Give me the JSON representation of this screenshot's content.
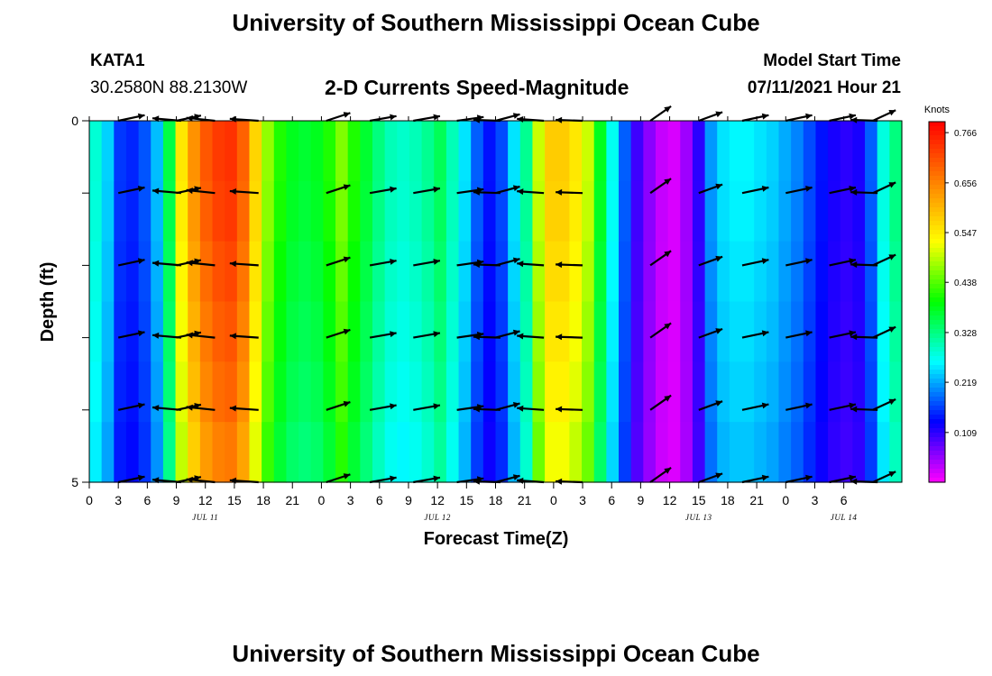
{
  "header": {
    "title": "University of Southern Mississippi Ocean Cube",
    "station": "KATA1",
    "coords": "30.2580N  88.2130W",
    "plot_title": "2-D Currents Speed-Magnitude",
    "start_label": "Model Start Time",
    "start_value": "07/11/2021 Hour 21"
  },
  "footer": {
    "title": "University of Southern Mississippi Ocean Cube"
  },
  "chart_data": {
    "type": "heatmap",
    "title": "2-D Currents Speed-Magnitude",
    "xlabel": "Forecast Time(Z)",
    "ylabel": "Depth (ft)",
    "x_hours_from_jul11_00": [
      -3,
      81
    ],
    "ylim": [
      0,
      5
    ],
    "y_ticks": [
      "0",
      "5"
    ],
    "x_tick_labels": [
      "0",
      "3",
      "6",
      "9",
      "12",
      "15",
      "18",
      "21",
      "0",
      "3",
      "6",
      "9",
      "12",
      "15",
      "18",
      "21",
      "0",
      "3",
      "6",
      "9",
      "12",
      "15",
      "18",
      "21",
      "0",
      "3",
      "6"
    ],
    "date_labels": [
      {
        "label": "JUL 11",
        "hour": 9
      },
      {
        "label": "JUL 12",
        "hour": 33
      },
      {
        "label": "JUL 13",
        "hour": 60
      },
      {
        "label": "JUL 14",
        "hour": 75
      }
    ],
    "colorbar": {
      "unit": "Knots",
      "min": 0.0,
      "max": 0.79,
      "labels": [
        "0.766",
        "0.656",
        "0.547",
        "0.438",
        "0.328",
        "0.219",
        "0.109"
      ],
      "label_values": [
        0.766,
        0.656,
        0.547,
        0.438,
        0.328,
        0.219,
        0.109
      ]
    },
    "colormap": [
      "#ff00ff",
      "#0000ff",
      "#00ffff",
      "#00ff00",
      "#ffff00",
      "#ff8000",
      "#ff0000"
    ],
    "speed_knots": [
      0.285,
      0.24,
      0.16,
      0.15,
      0.175,
      0.23,
      0.36,
      0.55,
      0.64,
      0.7,
      0.73,
      0.74,
      0.69,
      0.57,
      0.47,
      0.41,
      0.38,
      0.37,
      0.38,
      0.41,
      0.46,
      0.41,
      0.37,
      0.33,
      0.3,
      0.29,
      0.3,
      0.32,
      0.35,
      0.3,
      0.25,
      0.18,
      0.14,
      0.17,
      0.25,
      0.32,
      0.5,
      0.58,
      0.58,
      0.55,
      0.5,
      0.38,
      0.27,
      0.18,
      0.1,
      0.06,
      0.03,
      0.02,
      0.05,
      0.11,
      0.21,
      0.25,
      0.26,
      0.26,
      0.25,
      0.24,
      0.22,
      0.2,
      0.17,
      0.14,
      0.12,
      0.11,
      0.12,
      0.18,
      0.28,
      0.33
    ],
    "depth_factors": [
      1.0,
      0.99,
      0.97,
      0.95,
      0.93,
      0.9
    ],
    "vector_levels": [
      0,
      1,
      2,
      3,
      4,
      5
    ],
    "vectors": [
      {
        "hour": 0,
        "dir_deg": 12,
        "len": 30
      },
      {
        "hour": 6,
        "dir_deg": 12,
        "len": 28
      },
      {
        "hour": 6.5,
        "dir_deg": 175,
        "len": 32
      },
      {
        "hour": 10,
        "dir_deg": 174,
        "len": 32
      },
      {
        "hour": 14.5,
        "dir_deg": 176,
        "len": 32
      },
      {
        "hour": 21.5,
        "dir_deg": 18,
        "len": 28
      },
      {
        "hour": 26,
        "dir_deg": 10,
        "len": 30
      },
      {
        "hour": 30.5,
        "dir_deg": 10,
        "len": 30
      },
      {
        "hour": 35,
        "dir_deg": 8,
        "len": 30
      },
      {
        "hour": 39,
        "dir_deg": 15,
        "len": 28
      },
      {
        "hour": 39.5,
        "dir_deg": 178,
        "len": 30
      },
      {
        "hour": 44,
        "dir_deg": 176,
        "len": 30
      },
      {
        "hour": 48,
        "dir_deg": 178,
        "len": 30
      },
      {
        "hour": 55,
        "dir_deg": 35,
        "len": 28
      },
      {
        "hour": 60,
        "dir_deg": 20,
        "len": 28
      },
      {
        "hour": 64.5,
        "dir_deg": 12,
        "len": 30
      },
      {
        "hour": 69,
        "dir_deg": 12,
        "len": 30
      },
      {
        "hour": 73.5,
        "dir_deg": 12,
        "len": 30
      },
      {
        "hour": 78,
        "dir_deg": 25,
        "len": 28
      },
      {
        "hour": 78.5,
        "dir_deg": 178,
        "len": 30
      }
    ]
  }
}
